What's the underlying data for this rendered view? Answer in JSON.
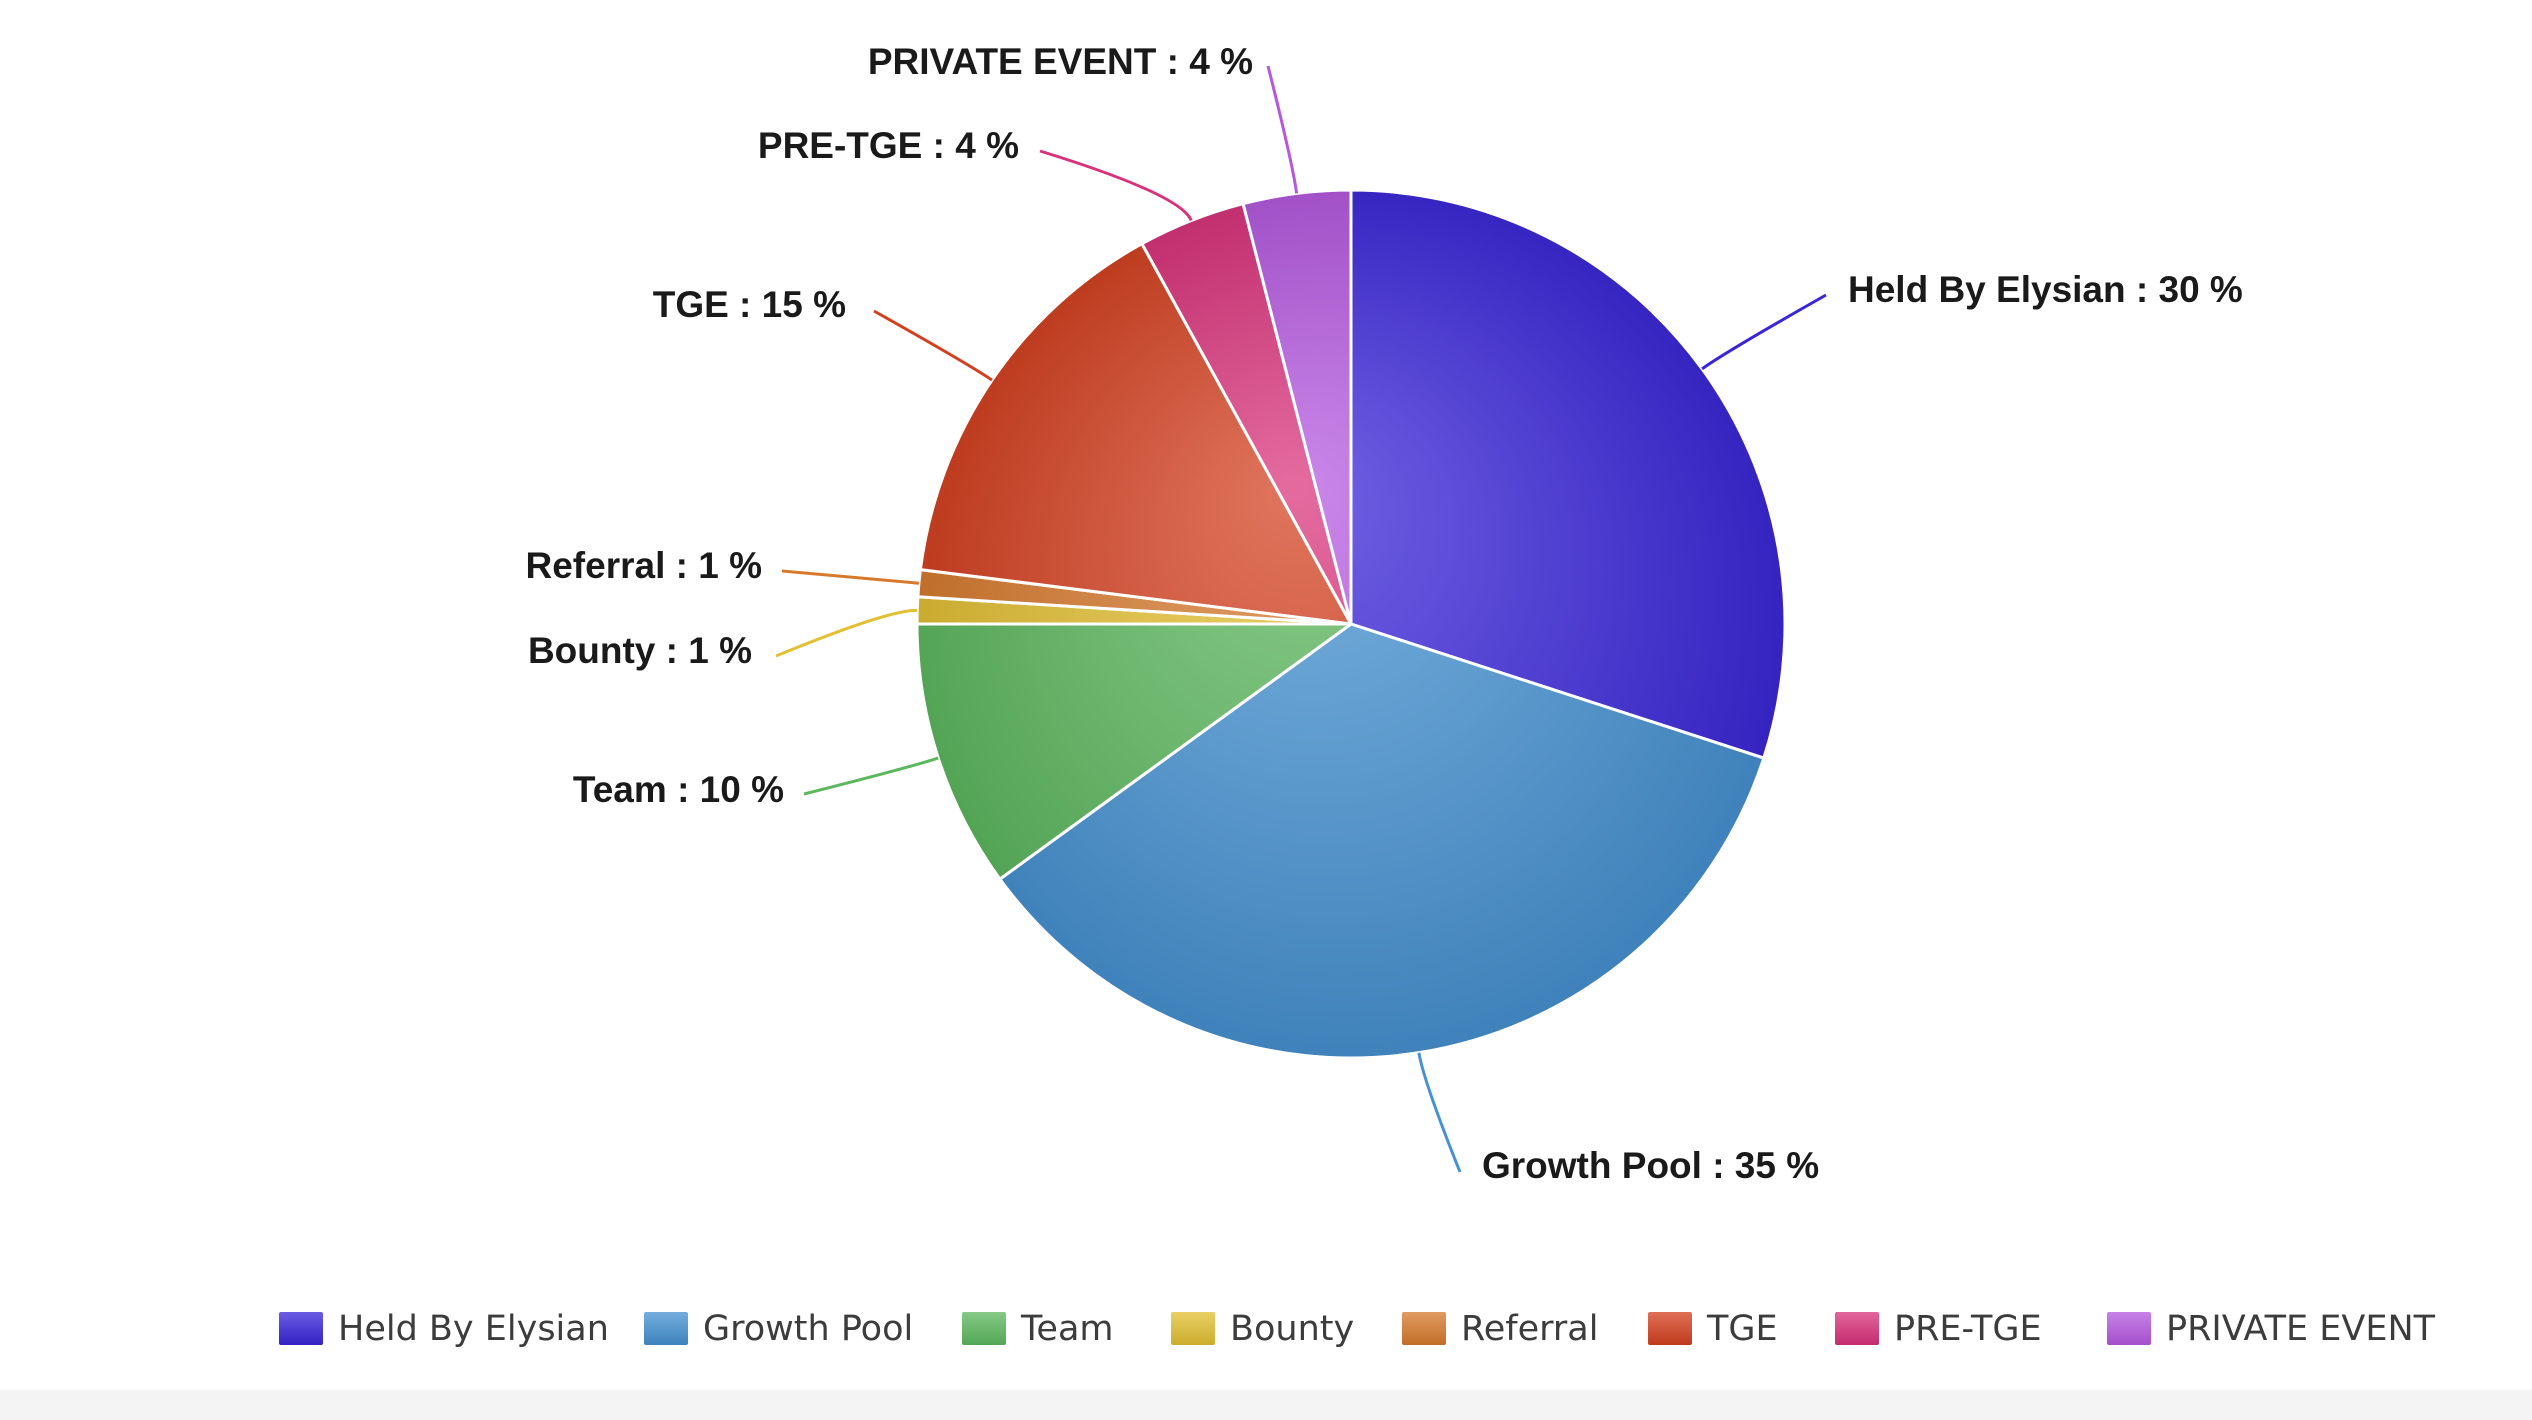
{
  "chart_data": {
    "type": "pie",
    "title": "",
    "slices": [
      {
        "name": "Held By Elysian",
        "value": 30,
        "color": "#3a25d9"
      },
      {
        "name": "Growth Pool",
        "value": 35,
        "color": "#4592d2"
      },
      {
        "name": "Team",
        "value": 10,
        "color": "#5cb85e"
      },
      {
        "name": "Bounty",
        "value": 1,
        "color": "#e3c032"
      },
      {
        "name": "Referral",
        "value": 1,
        "color": "#d77a2c"
      },
      {
        "name": "TGE",
        "value": 15,
        "color": "#d4401f"
      },
      {
        "name": "PRE-TGE",
        "value": 4,
        "color": "#d9317a"
      },
      {
        "name": "PRIVATE EVENT",
        "value": 4,
        "color": "#b558e0"
      }
    ],
    "labels": [
      {
        "name": "Held By Elysian",
        "text": "Held By Elysian : 30 %"
      },
      {
        "name": "Growth Pool",
        "text": "Growth Pool : 35 %"
      },
      {
        "name": "Team",
        "text": "Team : 10 %"
      },
      {
        "name": "Bounty",
        "text": "Bounty : 1 %"
      },
      {
        "name": "Referral",
        "text": "Referral : 1 %"
      },
      {
        "name": "TGE",
        "text": "TGE : 15 %"
      },
      {
        "name": "PRE-TGE",
        "text": "PRE-TGE : 4 %"
      },
      {
        "name": "PRIVATE EVENT",
        "text": "PRIVATE EVENT : 4 %"
      }
    ],
    "legend": {
      "position": "bottom",
      "items": [
        "Held By Elysian",
        "Growth Pool",
        "Team",
        "Bounty",
        "Referral",
        "TGE",
        "PRE-TGE",
        "PRIVATE EVENT"
      ]
    }
  }
}
